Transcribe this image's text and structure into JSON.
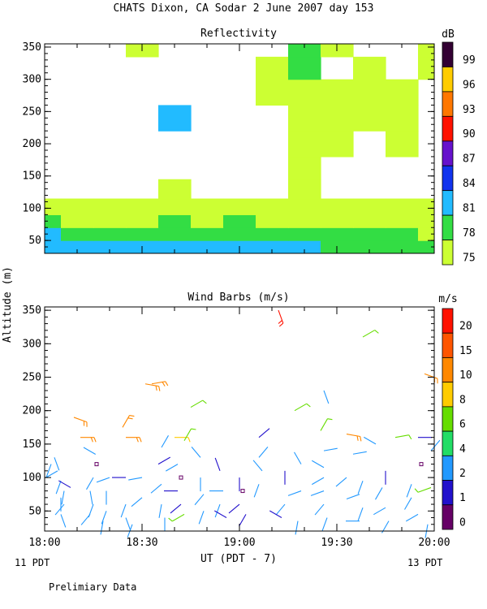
{
  "title": "CHATS Dixon, CA  Sodar   2 June 2007  day 153",
  "ylabel": "Altitude (m)",
  "xlabel": "UT  (PDT - 7)",
  "x_left_sub": "11 PDT",
  "x_right_sub": "13 PDT",
  "footer": "Prelimiary Data",
  "chart_data": [
    {
      "type": "heatmap",
      "title": "Reflectivity",
      "colorbar_label": "dB",
      "colorbar_ticks": [
        "75",
        "78",
        "81",
        "84",
        "87",
        "90",
        "93",
        "96",
        "99"
      ],
      "colorbar_colors": [
        "#ccff33",
        "#33dd44",
        "#22bbff",
        "#1133ee",
        "#6611cc",
        "#ff1100",
        "#ff7700",
        "#ffcc00",
        "#330033"
      ],
      "x_ticks": [
        "18:00",
        "18:30",
        "19:00",
        "19:30",
        "20:00"
      ],
      "y_ticks": [
        "50",
        "100",
        "150",
        "200",
        "250",
        "300",
        "350"
      ],
      "ylim": [
        30,
        355
      ],
      "xlim": [
        "18:00",
        "20:00"
      ],
      "levels_present": {
        "81": "nearly continuous band 40-80 m",
        "84": "patches near 18:05, 18:40, 19:00 at ~40-60 m and ~240 m at 18:43"
      },
      "x": [
        "18:00",
        "18:10",
        "18:20",
        "18:30",
        "18:40",
        "18:50",
        "19:00",
        "19:10",
        "19:20",
        "19:30",
        "19:40",
        "19:50",
        "20:00"
      ],
      "y": [
        40,
        60,
        80,
        100,
        130,
        160,
        200,
        240,
        280,
        320,
        350
      ],
      "values_dB": [
        [
          83,
          82,
          81,
          82,
          83,
          81,
          82,
          81,
          81,
          80,
          80,
          80,
          79
        ],
        [
          81,
          80,
          79,
          79,
          80,
          79,
          80,
          79,
          78,
          78,
          78,
          78,
          77
        ],
        [
          78,
          77,
          77,
          77,
          78,
          77,
          78,
          77,
          77,
          76,
          76,
          76,
          76
        ],
        [
          76,
          75,
          75,
          75,
          76,
          75,
          76,
          75,
          76,
          75,
          75,
          75,
          75
        ],
        [
          74,
          74,
          74,
          74,
          75,
          74,
          74,
          74,
          76,
          74,
          74,
          73,
          73
        ],
        [
          73,
          73,
          73,
          73,
          74,
          73,
          73,
          74,
          76,
          74,
          74,
          73,
          73
        ],
        [
          73,
          73,
          73,
          73,
          74,
          73,
          73,
          74,
          76,
          75,
          74,
          75,
          73
        ],
        [
          73,
          73,
          73,
          74,
          83,
          74,
          73,
          74,
          76,
          76,
          75,
          76,
          73
        ],
        [
          73,
          73,
          73,
          73,
          74,
          73,
          73,
          75,
          77,
          75,
          75,
          76,
          74
        ],
        [
          73,
          73,
          73,
          73,
          73,
          73,
          73,
          75,
          78,
          74,
          75,
          74,
          75
        ],
        [
          73,
          73,
          73,
          75,
          73,
          73,
          73,
          74,
          80,
          75,
          74,
          74,
          75
        ]
      ]
    },
    {
      "type": "scatter",
      "title": "Wind Barbs (m/s)",
      "colorbar_label": "m/s",
      "colorbar_ticks": [
        "0",
        "1",
        "2",
        "4",
        "6",
        "8",
        "10",
        "15",
        "20"
      ],
      "colorbar_colors": [
        "#660066",
        "#2211cc",
        "#2299ff",
        "#22dd66",
        "#66dd00",
        "#ffcc00",
        "#ff8800",
        "#ff5500",
        "#ff1100"
      ],
      "x_ticks": [
        "18:00",
        "18:30",
        "19:00",
        "19:30",
        "20:00"
      ],
      "y_ticks": [
        "50",
        "100",
        "150",
        "200",
        "250",
        "300",
        "350"
      ],
      "ylim": [
        20,
        355
      ],
      "xlim": [
        "18:00",
        "20:00"
      ],
      "points": [
        {
          "t": 2,
          "alt": 120,
          "s": 3,
          "d": 200
        },
        {
          "t": 3,
          "alt": 130,
          "s": 3,
          "d": 160
        },
        {
          "t": 4,
          "alt": 110,
          "s": 3,
          "d": 240
        },
        {
          "t": 5,
          "alt": 95,
          "s": 2,
          "d": 200
        },
        {
          "t": 5,
          "alt": 70,
          "s": 3,
          "d": 180
        },
        {
          "t": 5,
          "alt": 45,
          "s": 3,
          "d": 160
        },
        {
          "t": 6,
          "alt": 60,
          "s": 2,
          "d": 220
        },
        {
          "t": 6,
          "alt": 80,
          "s": 3,
          "d": 190
        },
        {
          "t": 8,
          "alt": 85,
          "s": 1,
          "d": 300
        },
        {
          "t": 9,
          "alt": 190,
          "s": 14,
          "d": 110
        },
        {
          "t": 11,
          "alt": 160,
          "s": 10,
          "d": 90
        },
        {
          "t": 12,
          "alt": 145,
          "s": 3,
          "d": 120
        },
        {
          "t": 15,
          "alt": 100,
          "s": 3,
          "d": 210
        },
        {
          "t": 14,
          "alt": 80,
          "s": 3,
          "d": 170
        },
        {
          "t": 15,
          "alt": 60,
          "s": 3,
          "d": 200
        },
        {
          "t": 14,
          "alt": 45,
          "s": 3,
          "d": 220
        },
        {
          "t": 16,
          "alt": 120,
          "s": 0,
          "d": 0
        },
        {
          "t": 20,
          "alt": 100,
          "s": 3,
          "d": 250
        },
        {
          "t": 19,
          "alt": 80,
          "s": 3,
          "d": 180
        },
        {
          "t": 19,
          "alt": 50,
          "s": 3,
          "d": 200
        },
        {
          "t": 18,
          "alt": 35,
          "s": 3,
          "d": 190
        },
        {
          "t": 24,
          "alt": 175,
          "s": 14,
          "d": 30
        },
        {
          "t": 25,
          "alt": 160,
          "s": 10,
          "d": 90
        },
        {
          "t": 25,
          "alt": 100,
          "s": 1,
          "d": 270
        },
        {
          "t": 25,
          "alt": 60,
          "s": 3,
          "d": 200
        },
        {
          "t": 25,
          "alt": 40,
          "s": 3,
          "d": 160
        },
        {
          "t": 27,
          "alt": 30,
          "s": 3,
          "d": 200
        },
        {
          "t": 30,
          "alt": 100,
          "s": 2,
          "d": 260
        },
        {
          "t": 30,
          "alt": 70,
          "s": 3,
          "d": 230
        },
        {
          "t": 31,
          "alt": 240,
          "s": 14,
          "d": 100
        },
        {
          "t": 33,
          "alt": 240,
          "s": 14,
          "d": 80
        },
        {
          "t": 35,
          "alt": 120,
          "s": 1,
          "d": 60
        },
        {
          "t": 36,
          "alt": 145,
          "s": 3,
          "d": 30
        },
        {
          "t": 36,
          "alt": 90,
          "s": 3,
          "d": 230
        },
        {
          "t": 36,
          "alt": 60,
          "s": 3,
          "d": 190
        },
        {
          "t": 37,
          "alt": 40,
          "s": 3,
          "d": 180
        },
        {
          "t": 40,
          "alt": 160,
          "s": 8,
          "d": 90
        },
        {
          "t": 41,
          "alt": 120,
          "s": 3,
          "d": 240
        },
        {
          "t": 42,
          "alt": 100,
          "s": 0,
          "d": 0
        },
        {
          "t": 41,
          "alt": 80,
          "s": 1,
          "d": 270
        },
        {
          "t": 42,
          "alt": 60,
          "s": 1,
          "d": 230
        },
        {
          "t": 43,
          "alt": 45,
          "s": 6,
          "d": 240
        },
        {
          "t": 43,
          "alt": 155,
          "s": 6,
          "d": 30
        },
        {
          "t": 45,
          "alt": 205,
          "s": 6,
          "d": 60
        },
        {
          "t": 48,
          "alt": 130,
          "s": 3,
          "d": 320
        },
        {
          "t": 48,
          "alt": 100,
          "s": 3,
          "d": 180
        },
        {
          "t": 49,
          "alt": 75,
          "s": 3,
          "d": 220
        },
        {
          "t": 49,
          "alt": 50,
          "s": 3,
          "d": 200
        },
        {
          "t": 54,
          "alt": 110,
          "s": 1,
          "d": 340
        },
        {
          "t": 55,
          "alt": 80,
          "s": 3,
          "d": 270
        },
        {
          "t": 54,
          "alt": 60,
          "s": 2,
          "d": 200
        },
        {
          "t": 56,
          "alt": 40,
          "s": 1,
          "d": 300
        },
        {
          "t": 60,
          "alt": 100,
          "s": 1,
          "d": 180
        },
        {
          "t": 61,
          "alt": 80,
          "s": 0,
          "d": 0
        },
        {
          "t": 60,
          "alt": 60,
          "s": 1,
          "d": 230
        },
        {
          "t": 62,
          "alt": 45,
          "s": 1,
          "d": 210
        },
        {
          "t": 66,
          "alt": 160,
          "s": 1,
          "d": 50
        },
        {
          "t": 66,
          "alt": 130,
          "s": 3,
          "d": 40
        },
        {
          "t": 67,
          "alt": 110,
          "s": 3,
          "d": 320
        },
        {
          "t": 66,
          "alt": 90,
          "s": 3,
          "d": 200
        },
        {
          "t": 72,
          "alt": 350,
          "s": 20,
          "d": 160
        },
        {
          "t": 74,
          "alt": 110,
          "s": 1,
          "d": 180
        },
        {
          "t": 74,
          "alt": 60,
          "s": 3,
          "d": 220
        },
        {
          "t": 73,
          "alt": 40,
          "s": 1,
          "d": 300
        },
        {
          "t": 77,
          "alt": 200,
          "s": 6,
          "d": 60
        },
        {
          "t": 79,
          "alt": 120,
          "s": 3,
          "d": 330
        },
        {
          "t": 79,
          "alt": 80,
          "s": 3,
          "d": 250
        },
        {
          "t": 78,
          "alt": 35,
          "s": 3,
          "d": 190
        },
        {
          "t": 86,
          "alt": 230,
          "s": 3,
          "d": 160
        },
        {
          "t": 85,
          "alt": 170,
          "s": 6,
          "d": 30
        },
        {
          "t": 86,
          "alt": 140,
          "s": 3,
          "d": 80
        },
        {
          "t": 86,
          "alt": 115,
          "s": 3,
          "d": 300
        },
        {
          "t": 86,
          "alt": 100,
          "s": 3,
          "d": 240
        },
        {
          "t": 86,
          "alt": 80,
          "s": 3,
          "d": 250
        },
        {
          "t": 86,
          "alt": 60,
          "s": 3,
          "d": 220
        },
        {
          "t": 87,
          "alt": 40,
          "s": 3,
          "d": 200
        },
        {
          "t": 93,
          "alt": 165,
          "s": 14,
          "d": 100
        },
        {
          "t": 95,
          "alt": 135,
          "s": 3,
          "d": 80
        },
        {
          "t": 93,
          "alt": 100,
          "s": 3,
          "d": 230
        },
        {
          "t": 98,
          "alt": 95,
          "s": 3,
          "d": 200
        },
        {
          "t": 97,
          "alt": 75,
          "s": 3,
          "d": 250
        },
        {
          "t": 98,
          "alt": 55,
          "s": 3,
          "d": 200
        },
        {
          "t": 97,
          "alt": 35,
          "s": 3,
          "d": 270
        },
        {
          "t": 98,
          "alt": 310,
          "s": 6,
          "d": 60
        },
        {
          "t": 102,
          "alt": 150,
          "s": 3,
          "d": 300
        },
        {
          "t": 105,
          "alt": 110,
          "s": 1,
          "d": 180
        },
        {
          "t": 104,
          "alt": 85,
          "s": 3,
          "d": 210
        },
        {
          "t": 105,
          "alt": 55,
          "s": 3,
          "d": 240
        },
        {
          "t": 106,
          "alt": 35,
          "s": 3,
          "d": 210
        },
        {
          "t": 108,
          "alt": 160,
          "s": 6,
          "d": 80
        },
        {
          "t": 115,
          "alt": 160,
          "s": 1,
          "d": 90
        },
        {
          "t": 116,
          "alt": 120,
          "s": 0,
          "d": 0
        },
        {
          "t": 113,
          "alt": 90,
          "s": 3,
          "d": 200
        },
        {
          "t": 113,
          "alt": 70,
          "s": 3,
          "d": 210
        },
        {
          "t": 115,
          "alt": 45,
          "s": 3,
          "d": 240
        },
        {
          "t": 118,
          "alt": 30,
          "s": 3,
          "d": 190
        },
        {
          "t": 117,
          "alt": 255,
          "s": 14,
          "d": 110
        },
        {
          "t": 119,
          "alt": 140,
          "s": 3,
          "d": 40
        },
        {
          "t": 119,
          "alt": 85,
          "s": 6,
          "d": 250
        }
      ]
    }
  ]
}
